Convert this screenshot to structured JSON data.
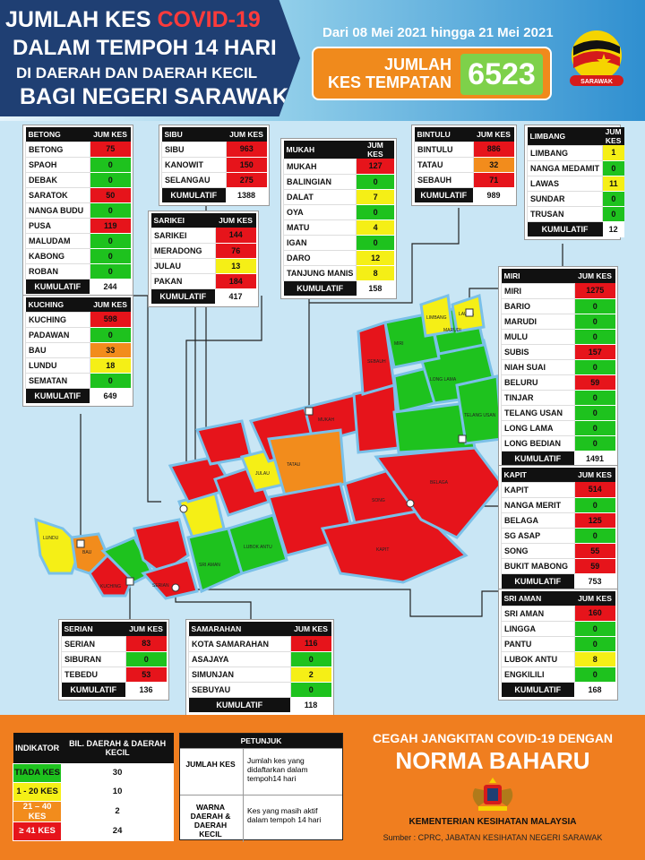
{
  "header": {
    "title_line1_a": "JUMLAH KES ",
    "title_line1_b": "COVID-19",
    "title_line2": "DALAM TEMPOH 14 HARI",
    "title_line3": "DI DAERAH DAN DAERAH KECIL",
    "title_line4": "BAGI NEGERI SARAWAK",
    "date_range": "Dari 08 Mei 2021 hingga 21 Mei 2021",
    "total_label_1": "JUMLAH",
    "total_label_2": "KES TEMPATAN",
    "total_value": "6523",
    "logo_text": "SARAWAK"
  },
  "colors": {
    "green": "#1ec21e",
    "yellow": "#f5ef16",
    "orange": "#f28c1c",
    "red": "#e6141b",
    "header_navy": "#1f3f73",
    "footer_orange": "#f07e1f"
  },
  "col_header": "JUM KES",
  "footer_label": "KUMULATIF",
  "tables": {
    "betong": {
      "division": "BETONG",
      "rows": [
        {
          "name": "BETONG",
          "value": "75",
          "level": "r"
        },
        {
          "name": "SPAOH",
          "value": "0",
          "level": "g"
        },
        {
          "name": "DEBAK",
          "value": "0",
          "level": "g"
        },
        {
          "name": "SARATOK",
          "value": "50",
          "level": "r"
        },
        {
          "name": "NANGA BUDU",
          "value": "0",
          "level": "g"
        },
        {
          "name": "PUSA",
          "value": "119",
          "level": "r"
        },
        {
          "name": "MALUDAM",
          "value": "0",
          "level": "g"
        },
        {
          "name": "KABONG",
          "value": "0",
          "level": "g"
        },
        {
          "name": "ROBAN",
          "value": "0",
          "level": "g"
        }
      ],
      "total": "244"
    },
    "sibu": {
      "division": "SIBU",
      "rows": [
        {
          "name": "SIBU",
          "value": "963",
          "level": "r"
        },
        {
          "name": "KANOWIT",
          "value": "150",
          "level": "r"
        },
        {
          "name": "SELANGAU",
          "value": "275",
          "level": "r"
        }
      ],
      "total": "1388"
    },
    "sarikei": {
      "division": "SARIKEI",
      "rows": [
        {
          "name": "SARIKEI",
          "value": "144",
          "level": "r"
        },
        {
          "name": "MERADONG",
          "value": "76",
          "level": "r"
        },
        {
          "name": "JULAU",
          "value": "13",
          "level": "y"
        },
        {
          "name": "PAKAN",
          "value": "184",
          "level": "r"
        }
      ],
      "total": "417"
    },
    "mukah": {
      "division": "MUKAH",
      "rows": [
        {
          "name": "MUKAH",
          "value": "127",
          "level": "r"
        },
        {
          "name": "BALINGIAN",
          "value": "0",
          "level": "g"
        },
        {
          "name": "DALAT",
          "value": "7",
          "level": "y"
        },
        {
          "name": "OYA",
          "value": "0",
          "level": "g"
        },
        {
          "name": "MATU",
          "value": "4",
          "level": "y"
        },
        {
          "name": "IGAN",
          "value": "0",
          "level": "g"
        },
        {
          "name": "DARO",
          "value": "12",
          "level": "y"
        },
        {
          "name": "TANJUNG MANIS",
          "value": "8",
          "level": "y"
        }
      ],
      "total": "158"
    },
    "bintulu": {
      "division": "BINTULU",
      "rows": [
        {
          "name": "BINTULU",
          "value": "886",
          "level": "r"
        },
        {
          "name": "TATAU",
          "value": "32",
          "level": "o"
        },
        {
          "name": "SEBAUH",
          "value": "71",
          "level": "r"
        }
      ],
      "total": "989"
    },
    "limbang": {
      "division": "LIMBANG",
      "rows": [
        {
          "name": "LIMBANG",
          "value": "1",
          "level": "y"
        },
        {
          "name": "NANGA MEDAMIT",
          "value": "0",
          "level": "g"
        },
        {
          "name": "LAWAS",
          "value": "11",
          "level": "y"
        },
        {
          "name": "SUNDAR",
          "value": "0",
          "level": "g"
        },
        {
          "name": "TRUSAN",
          "value": "0",
          "level": "g"
        }
      ],
      "total": "12"
    },
    "kuching": {
      "division": "KUCHING",
      "rows": [
        {
          "name": "KUCHING",
          "value": "598",
          "level": "r"
        },
        {
          "name": "PADAWAN",
          "value": "0",
          "level": "g"
        },
        {
          "name": "BAU",
          "value": "33",
          "level": "o"
        },
        {
          "name": "LUNDU",
          "value": "18",
          "level": "y"
        },
        {
          "name": "SEMATAN",
          "value": "0",
          "level": "g"
        }
      ],
      "total": "649"
    },
    "miri": {
      "division": "MIRI",
      "rows": [
        {
          "name": "MIRI",
          "value": "1275",
          "level": "r"
        },
        {
          "name": "BARIO",
          "value": "0",
          "level": "g"
        },
        {
          "name": "MARUDI",
          "value": "0",
          "level": "g"
        },
        {
          "name": "MULU",
          "value": "0",
          "level": "g"
        },
        {
          "name": "SUBIS",
          "value": "157",
          "level": "r"
        },
        {
          "name": "NIAH SUAI",
          "value": "0",
          "level": "g"
        },
        {
          "name": "BELURU",
          "value": "59",
          "level": "r"
        },
        {
          "name": "TINJAR",
          "value": "0",
          "level": "g"
        },
        {
          "name": "TELANG USAN",
          "value": "0",
          "level": "g"
        },
        {
          "name": "LONG LAMA",
          "value": "0",
          "level": "g"
        },
        {
          "name": "LONG BEDIAN",
          "value": "0",
          "level": "g"
        }
      ],
      "total": "1491"
    },
    "kapit": {
      "division": "KAPIT",
      "rows": [
        {
          "name": "KAPIT",
          "value": "514",
          "level": "r"
        },
        {
          "name": "NANGA MERIT",
          "value": "0",
          "level": "g"
        },
        {
          "name": "BELAGA",
          "value": "125",
          "level": "r"
        },
        {
          "name": "SG ASAP",
          "value": "0",
          "level": "g"
        },
        {
          "name": "SONG",
          "value": "55",
          "level": "r"
        },
        {
          "name": "BUKIT MABONG",
          "value": "59",
          "level": "r"
        }
      ],
      "total": "753"
    },
    "sri_aman": {
      "division": "SRI AMAN",
      "rows": [
        {
          "name": "SRI AMAN",
          "value": "160",
          "level": "r"
        },
        {
          "name": "LINGGA",
          "value": "0",
          "level": "g"
        },
        {
          "name": "PANTU",
          "value": "0",
          "level": "g"
        },
        {
          "name": "LUBOK ANTU",
          "value": "8",
          "level": "y"
        },
        {
          "name": "ENGKILILI",
          "value": "0",
          "level": "g"
        }
      ],
      "total": "168"
    },
    "serian": {
      "division": "SERIAN",
      "rows": [
        {
          "name": "SERIAN",
          "value": "83",
          "level": "r"
        },
        {
          "name": "SIBURAN",
          "value": "0",
          "level": "g"
        },
        {
          "name": "TEBEDU",
          "value": "53",
          "level": "r"
        }
      ],
      "total": "136"
    },
    "samarahan": {
      "division": "SAMARAHAN",
      "rows": [
        {
          "name": "KOTA SAMARAHAN",
          "value": "116",
          "level": "r"
        },
        {
          "name": "ASAJAYA",
          "value": "0",
          "level": "g"
        },
        {
          "name": "SIMUNJAN",
          "value": "2",
          "level": "y"
        },
        {
          "name": "SEBUYAU",
          "value": "0",
          "level": "g"
        }
      ],
      "total": "118"
    }
  },
  "indicator": {
    "col1": "INDIKATOR",
    "col2": "BIL. DAERAH & DAERAH KECIL",
    "rows": [
      {
        "label": "TIADA KES",
        "count": "30",
        "level": "g"
      },
      {
        "label": "1 - 20 KES",
        "count": "10",
        "level": "y"
      },
      {
        "label": "21 – 40 KES",
        "count": "2",
        "level": "o"
      },
      {
        "label": "≥ 41 KES",
        "count": "24",
        "level": "r"
      }
    ]
  },
  "legend": {
    "title": "PETUNJUK",
    "term1": "JUMLAH KES",
    "desc1": "Jumlah kes yang didaftarkan dalam tempoh14 hari",
    "term2": "WARNA DAERAH & DAERAH KECIL",
    "desc2": "Kes yang masih aktif dalam tempoh 14 hari"
  },
  "slogan": {
    "line1": "CEGAH JANGKITAN COVID-19 DENGAN",
    "line2": "NORMA BAHARU"
  },
  "ministry": "KEMENTERIAN KESIHATAN MALAYSIA",
  "source": "Sumber : CPRC, JABATAN KESIHATAN NEGERI SARAWAK",
  "map_labels": {
    "limbang": "LIMBANG",
    "lawas": "LAWAS",
    "miri": "MIRI",
    "marudi": "MARUDI",
    "long_lama": "LONG LAMA",
    "telang_usan": "TELANG USAN",
    "tatau": "TATAU",
    "belaga": "BELAGA",
    "kapit": "KAPIT",
    "kuching": "KUCHING",
    "lundu": "LUNDU",
    "bau": "BAU",
    "serian": "SERIAN",
    "sri_aman": "SRI AMAN",
    "julau": "JULAU",
    "lubok_antu": "LUBOK ANTU",
    "song": "SONG",
    "sebauh": "SEBAUH",
    "mukah": "MUKAH"
  }
}
